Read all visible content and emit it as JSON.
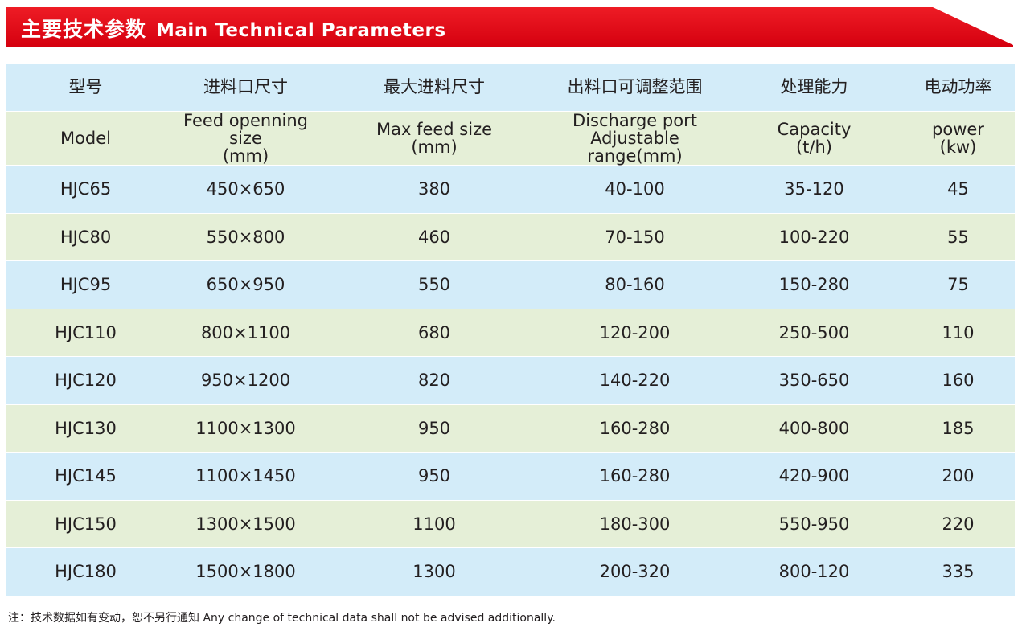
{
  "banner": {
    "title_cn": "主要技术参数",
    "title_en": "Main Technical Parameters",
    "color": "#e60012"
  },
  "table": {
    "header_cn": [
      "型号",
      "进料口尺寸",
      "最大进料尺寸",
      "出料口可调整范围",
      "处理能力",
      "电动功率"
    ],
    "header_en": [
      [
        "Model"
      ],
      [
        "Feed openning size",
        "(mm)"
      ],
      [
        "Max feed size",
        "(mm)"
      ],
      [
        "Discharge port",
        "Adjustable range(mm)"
      ],
      [
        "Capacity",
        "(t/h)"
      ],
      [
        "power",
        "(kw)"
      ]
    ],
    "rows": [
      [
        "HJC65",
        "450×650",
        "380",
        "40-100",
        "35-120",
        "45"
      ],
      [
        "HJC80",
        "550×800",
        "460",
        "70-150",
        "100-220",
        "55"
      ],
      [
        "HJC95",
        "650×950",
        "550",
        "80-160",
        "150-280",
        "75"
      ],
      [
        "HJC110",
        "800×1100",
        "680",
        "120-200",
        "250-500",
        "110"
      ],
      [
        "HJC120",
        "950×1200",
        "820",
        "140-220",
        "350-650",
        "160"
      ],
      [
        "HJC130",
        "1100×1300",
        "950",
        "160-280",
        "400-800",
        "185"
      ],
      [
        "HJC145",
        "1100×1450",
        "950",
        "160-280",
        "420-900",
        "200"
      ],
      [
        "HJC150",
        "1300×1500",
        "1100",
        "180-300",
        "550-950",
        "220"
      ],
      [
        "HJC180",
        "1500×1800",
        "1300",
        "200-320",
        "800-120",
        "335"
      ]
    ],
    "row_colors": {
      "blue": "#d3ecf9",
      "green": "#e5efd7"
    }
  },
  "note": "注：技术数据如有变动，恕不另行通知  Any change of technical data shall not be advised additionally."
}
